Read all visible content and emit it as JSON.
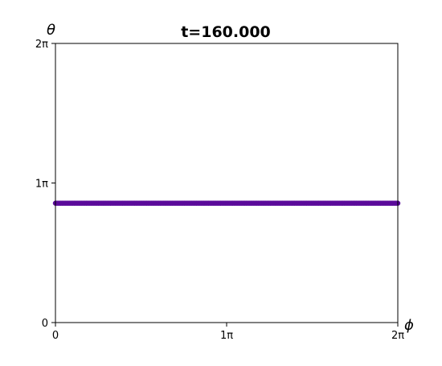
{
  "chart_data": {
    "type": "scatter",
    "title": "t=160.000",
    "xlabel": "ϕ",
    "ylabel": "θ",
    "xlim": [
      0,
      2
    ],
    "ylim": [
      0,
      2
    ],
    "units": "π",
    "x_ticks": [
      {
        "value": 0,
        "label": "0"
      },
      {
        "value": 1,
        "label": "1π"
      },
      {
        "value": 2,
        "label": "2π"
      }
    ],
    "y_ticks": [
      {
        "value": 0,
        "label": "0"
      },
      {
        "value": 1,
        "label": "1π"
      },
      {
        "value": 2,
        "label": "2π"
      }
    ],
    "grid": false,
    "series": [
      {
        "color": "#5b0a9a",
        "x_range": [
          0,
          2
        ],
        "point_count": 200,
        "y_value": 0.855
      }
    ]
  }
}
